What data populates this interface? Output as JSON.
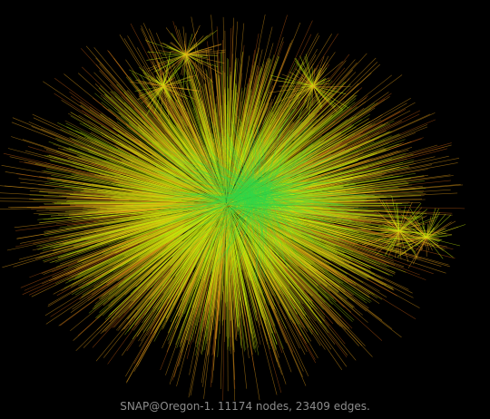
{
  "graph": {
    "caption": "SNAP@Oregon-1. 11174 nodes, 23409 edges.",
    "background": "#000000",
    "colors": {
      "near": "#2fd84a",
      "mid": "#c8f00a",
      "far": "#e6a11a",
      "outer": "#c95d12"
    }
  }
}
